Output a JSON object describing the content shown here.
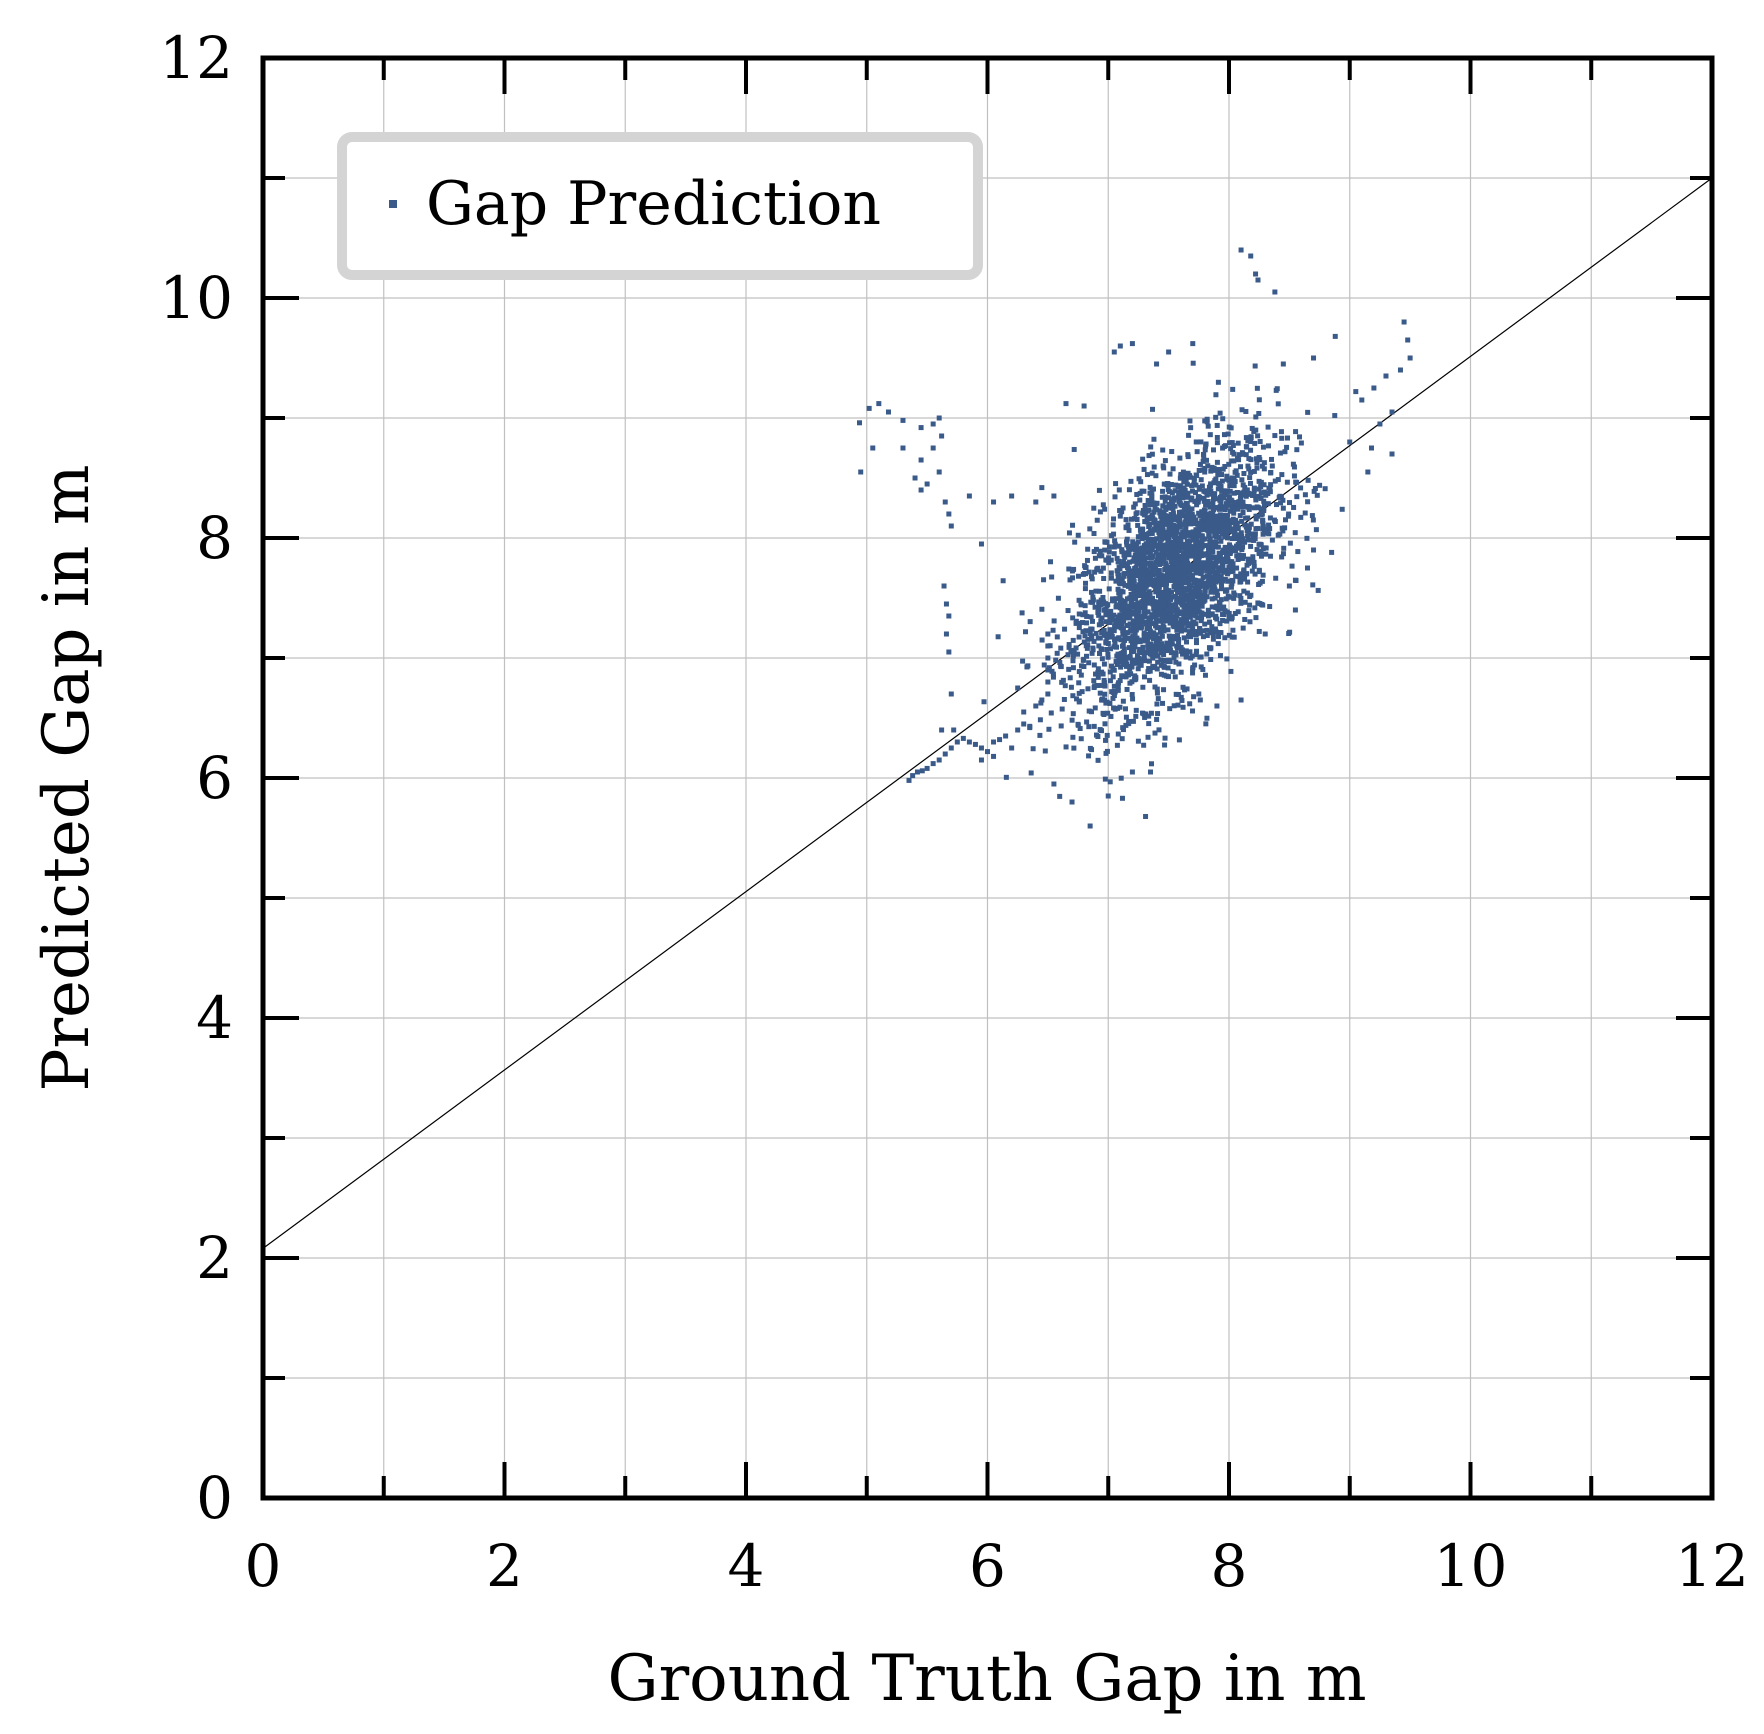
{
  "chart_data": {
    "type": "scatter",
    "title": "",
    "xlabel": "Ground Truth Gap in m",
    "ylabel": "Predicted Gap in m",
    "xlim": [
      0,
      12
    ],
    "ylim": [
      0,
      12
    ],
    "x_major_ticks": [
      0,
      2,
      4,
      6,
      8,
      10,
      12
    ],
    "y_major_ticks": [
      0,
      2,
      4,
      6,
      8,
      10,
      12
    ],
    "x_tick_labels": [
      "0",
      "2",
      "4",
      "6",
      "8",
      "10",
      "12"
    ],
    "y_tick_labels": [
      "0",
      "2",
      "4",
      "6",
      "8",
      "10",
      "12"
    ],
    "grid_step": 1,
    "grid": true,
    "legend": {
      "entries": [
        "Gap Prediction"
      ],
      "location": "top-left"
    },
    "colors": {
      "points": "#3a5a8a",
      "line": "#000000",
      "grid": "#c0c0c0",
      "legend_border": "#d4d4d4"
    },
    "fit_line": {
      "x": [
        0,
        12
      ],
      "y": [
        2.08,
        11.0
      ]
    },
    "series": [
      {
        "name": "Gap Prediction",
        "cluster": {
          "center_x": 7.55,
          "center_y": 7.7,
          "sd_x": 0.42,
          "sd_y": 0.55,
          "correlation": 0.55,
          "count": 2800
        },
        "outliers": [
          [
            4.94,
            8.96
          ],
          [
            5.02,
            9.08
          ],
          [
            5.1,
            9.12
          ],
          [
            5.18,
            9.05
          ],
          [
            5.3,
            8.98
          ],
          [
            5.45,
            8.92
          ],
          [
            5.55,
            8.95
          ],
          [
            5.6,
            9.0
          ],
          [
            4.95,
            8.55
          ],
          [
            5.05,
            8.75
          ],
          [
            5.3,
            8.75
          ],
          [
            5.45,
            8.65
          ],
          [
            5.55,
            8.75
          ],
          [
            5.62,
            8.85
          ],
          [
            5.4,
            8.5
          ],
          [
            5.5,
            8.45
          ],
          [
            5.6,
            8.55
          ],
          [
            5.45,
            8.4
          ],
          [
            5.65,
            8.3
          ],
          [
            5.68,
            8.2
          ],
          [
            5.7,
            8.1
          ],
          [
            5.85,
            8.35
          ],
          [
            5.95,
            7.95
          ],
          [
            5.64,
            7.6
          ],
          [
            5.66,
            7.45
          ],
          [
            5.68,
            7.35
          ],
          [
            5.66,
            7.2
          ],
          [
            5.68,
            7.05
          ],
          [
            5.7,
            6.7
          ],
          [
            5.72,
            6.4
          ],
          [
            5.35,
            5.98
          ],
          [
            5.38,
            6.02
          ],
          [
            5.42,
            6.05
          ],
          [
            5.46,
            6.06
          ],
          [
            5.5,
            6.08
          ],
          [
            5.55,
            6.12
          ],
          [
            5.6,
            6.15
          ],
          [
            5.65,
            6.2
          ],
          [
            5.7,
            6.25
          ],
          [
            5.75,
            6.3
          ],
          [
            5.8,
            6.33
          ],
          [
            5.85,
            6.3
          ],
          [
            5.9,
            6.28
          ],
          [
            5.95,
            6.25
          ],
          [
            6.0,
            6.22
          ],
          [
            6.05,
            6.3
          ],
          [
            6.1,
            6.32
          ],
          [
            6.15,
            6.35
          ],
          [
            6.25,
            6.4
          ],
          [
            6.3,
            6.45
          ],
          [
            6.35,
            6.42
          ],
          [
            5.95,
            6.15
          ],
          [
            6.05,
            6.18
          ],
          [
            6.2,
            6.25
          ],
          [
            5.62,
            6.4
          ],
          [
            8.18,
            10.35
          ],
          [
            8.22,
            10.2
          ],
          [
            8.24,
            10.15
          ],
          [
            8.38,
            10.05
          ],
          [
            8.1,
            10.4
          ],
          [
            8.88,
            9.68
          ],
          [
            9.45,
            9.8
          ],
          [
            9.48,
            9.65
          ],
          [
            9.5,
            9.5
          ],
          [
            9.42,
            9.4
          ],
          [
            9.3,
            9.35
          ],
          [
            9.2,
            9.25
          ],
          [
            9.1,
            9.15
          ],
          [
            9.05,
            9.22
          ],
          [
            9.35,
            9.05
          ],
          [
            9.25,
            8.95
          ],
          [
            9.18,
            8.75
          ],
          [
            9.0,
            8.8
          ],
          [
            9.35,
            8.7
          ],
          [
            9.15,
            8.55
          ],
          [
            7.1,
            9.6
          ],
          [
            7.2,
            9.62
          ],
          [
            7.05,
            9.55
          ],
          [
            7.5,
            9.55
          ],
          [
            7.7,
            9.62
          ],
          [
            7.4,
            9.45
          ],
          [
            8.45,
            9.45
          ],
          [
            8.7,
            9.5
          ],
          [
            6.65,
            9.12
          ],
          [
            6.8,
            9.1
          ],
          [
            6.55,
            8.35
          ],
          [
            6.45,
            8.42
          ],
          [
            6.4,
            8.3
          ],
          [
            6.2,
            8.35
          ],
          [
            6.05,
            8.3
          ],
          [
            8.7,
            7.9
          ],
          [
            8.85,
            7.88
          ],
          [
            8.65,
            7.75
          ],
          [
            8.5,
            7.6
          ],
          [
            8.55,
            7.4
          ],
          [
            8.3,
            7.2
          ],
          [
            8.1,
            6.65
          ],
          [
            7.9,
            6.6
          ],
          [
            7.75,
            6.7
          ],
          [
            7.35,
            6.05
          ],
          [
            7.2,
            6.05
          ],
          [
            7.0,
            5.85
          ],
          [
            6.85,
            5.6
          ],
          [
            6.7,
            5.8
          ],
          [
            6.55,
            5.95
          ],
          [
            6.5,
            7.2
          ],
          [
            6.5,
            7.1
          ],
          [
            6.5,
            7.0
          ],
          [
            6.5,
            6.9
          ],
          [
            6.5,
            6.8
          ],
          [
            6.5,
            6.7
          ],
          [
            6.45,
            6.65
          ],
          [
            6.4,
            6.6
          ],
          [
            6.3,
            6.55
          ],
          [
            6.25,
            6.75
          ]
        ]
      }
    ]
  }
}
